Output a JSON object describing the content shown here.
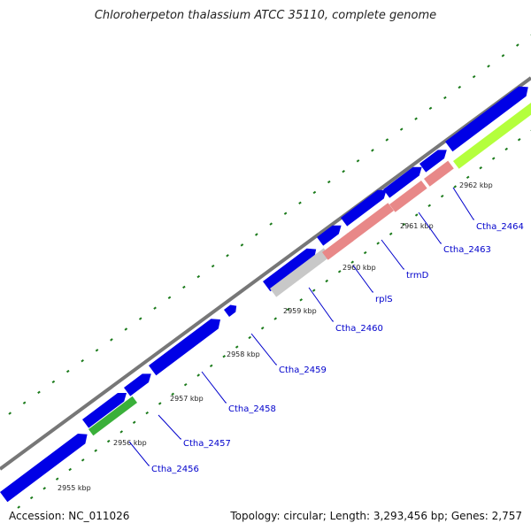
{
  "header": {
    "title": "Chloroherpeton thalassium ATCC 35110, complete genome"
  },
  "footer": {
    "accession": "Accession: NC_011026",
    "summary": "Topology: circular; Length: 3,293,456 bp; Genes: 2,757"
  },
  "colors": {
    "backbone": "#777777",
    "cds_forward": "#0000e6",
    "cds_reverse_trna": "#e88888",
    "pseudo": "#c8c8c8",
    "rrna": "#b4ff3c",
    "dark_green": "#3ab03a",
    "tick": "#1a7a1a",
    "label": "#0000cc"
  },
  "scale_labels": [
    "2955 kbp",
    "2956 kbp",
    "2957 kbp",
    "2958 kbp",
    "2959 kbp",
    "2960 kbp",
    "2961 kbp",
    "2962 kbp"
  ],
  "gene_labels": [
    "Ctha_2456",
    "Ctha_2457",
    "Ctha_2458",
    "Ctha_2459",
    "Ctha_2460",
    "rplS",
    "trmD",
    "Ctha_2463",
    "Ctha_2464"
  ]
}
